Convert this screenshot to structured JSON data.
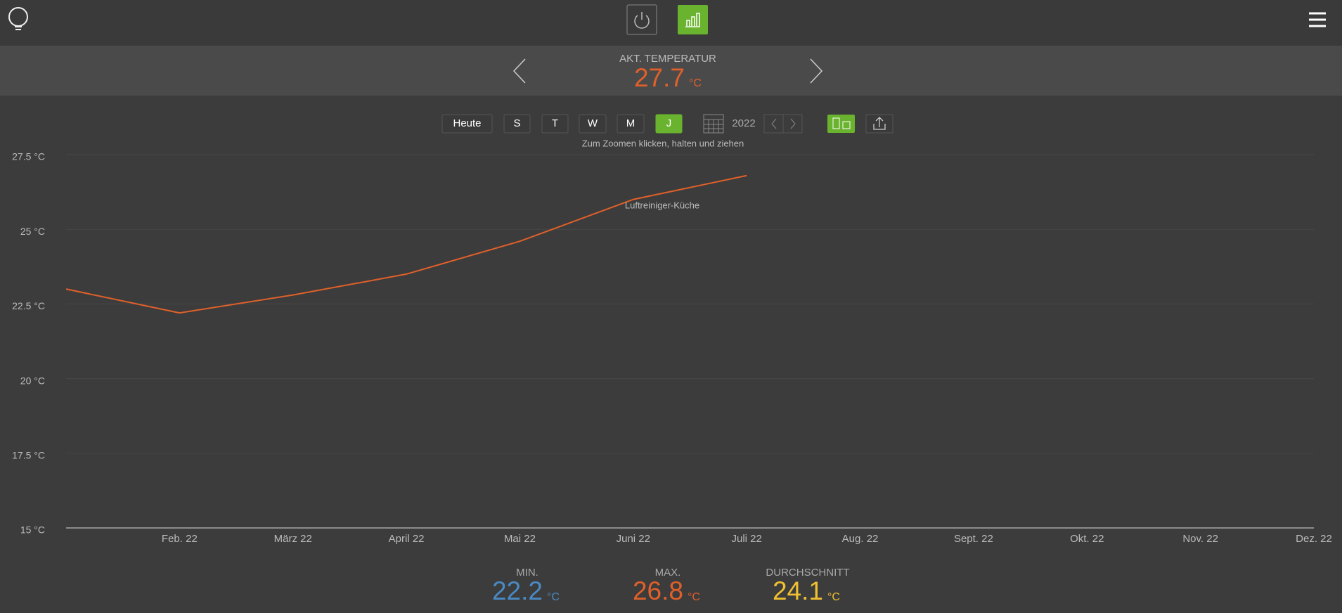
{
  "current": {
    "label": "AKT. TEMPERATUR",
    "value": 27.7,
    "unit": "°C"
  },
  "buttons": [
    "Heute",
    "S",
    "T",
    "W",
    "M",
    "J"
  ],
  "year": "2022",
  "hint": "Zum Zoomen klicken, halten und ziehen",
  "stats": [
    {
      "label": "MIN.",
      "value": 22.2,
      "unit": "°C",
      "color": "#4a8ac4"
    },
    {
      "label": "MAX.",
      "value": 26.8,
      "unit": "°C",
      "color": "#e0602a"
    },
    {
      "label": "DURCHSCHNITT",
      "value": 24.1,
      "unit": "°C",
      "color": "#f0c030"
    }
  ],
  "chart_data": {
    "type": "line",
    "categories": [
      null,
      "Feb. 22",
      "März 22",
      "April 22",
      "Mai 22",
      "Juni 22",
      "Juli 22",
      "Aug. 22",
      "Sept. 22",
      "Okt. 22",
      "Nov. 22",
      "Dez. 22"
    ],
    "series": [
      {
        "name": "Luftreiniger-Küche",
        "color": "#e0602a",
        "values": [
          23.0,
          22.2,
          22.8,
          23.5,
          24.6,
          26.0,
          26.8,
          null,
          null,
          null,
          null,
          null
        ]
      }
    ],
    "ylim": [
      15,
      27.5
    ],
    "yticks": [
      {
        "value": 15,
        "label": "15 °C"
      },
      {
        "value": 17.5,
        "label": "17.5 °C"
      },
      {
        "value": 20,
        "label": "20 °C"
      },
      {
        "value": 22.5,
        "label": "22.5 °C"
      },
      {
        "value": 25,
        "label": "25 °C"
      },
      {
        "value": 27.5,
        "label": "27.5 °C"
      }
    ],
    "grid": true
  }
}
